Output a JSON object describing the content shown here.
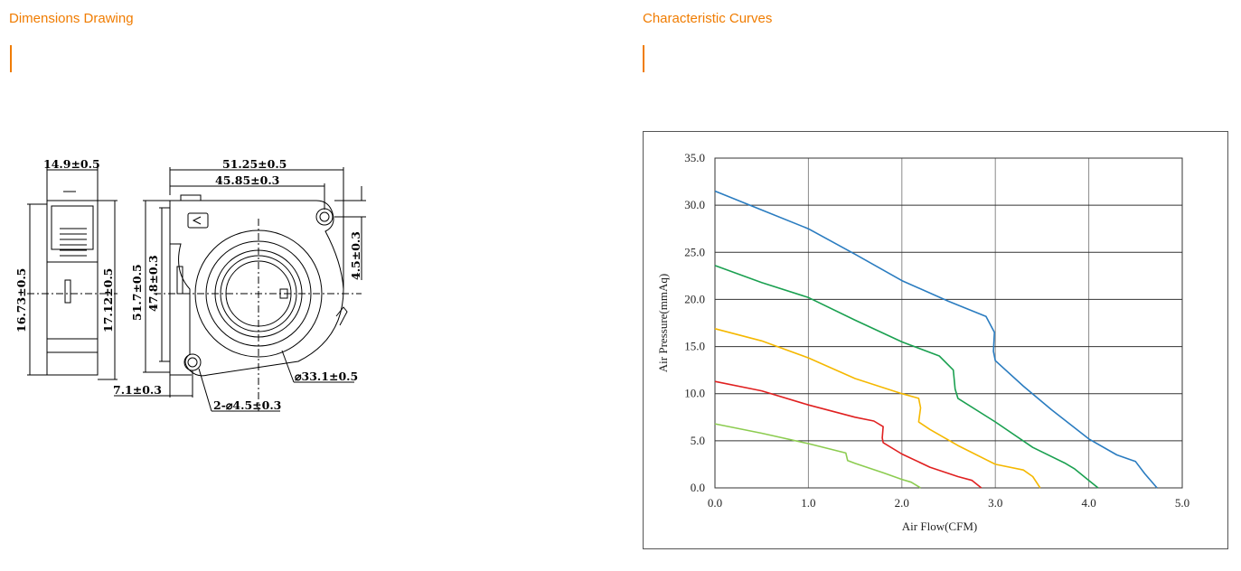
{
  "dimensions_section": {
    "title": "Dimensions Drawing",
    "labels": {
      "side_width": "14.9±0.5",
      "side_height_outer": "16.73±0.5",
      "side_height_inner": "17.12±0.5",
      "top_width": "51.25±0.5",
      "inner_width": "45.85±0.3",
      "outer_height": "51.7±0.5",
      "inner_height": "47.8±0.3",
      "right_offset": "4.5±0.3",
      "bottom_offset": "7.1±0.3",
      "hole_spec": "2-⌀4.5±0.3",
      "impeller_dia": "⌀33.1±0.5"
    }
  },
  "curves_section": {
    "title": "Characteristic Curves"
  },
  "chart_data": {
    "type": "line",
    "xlabel": "Air Flow(CFM)",
    "ylabel": "Air Pressure(mmAq)",
    "xlim": [
      0,
      5
    ],
    "ylim": [
      0,
      35
    ],
    "x_ticks": [
      "0.0",
      "1.0",
      "2.0",
      "3.0",
      "4.0",
      "5.0"
    ],
    "y_ticks": [
      "0.0",
      "5.0",
      "10.0",
      "15.0",
      "20.0",
      "25.0",
      "30.0",
      "35.0"
    ],
    "grid": true,
    "series": [
      {
        "color": "#2a7cc0",
        "points": [
          [
            0,
            31.5
          ],
          [
            0.5,
            29.5
          ],
          [
            1.0,
            27.5
          ],
          [
            1.5,
            24.8
          ],
          [
            2.0,
            22.0
          ],
          [
            2.5,
            19.8
          ],
          [
            2.9,
            18.2
          ],
          [
            2.99,
            16.5
          ],
          [
            2.98,
            14.5
          ],
          [
            3.0,
            13.5
          ],
          [
            3.3,
            10.8
          ],
          [
            3.6,
            8.3
          ],
          [
            4.0,
            5.2
          ],
          [
            4.3,
            3.5
          ],
          [
            4.5,
            2.8
          ],
          [
            4.6,
            1.5
          ],
          [
            4.73,
            0
          ]
        ]
      },
      {
        "color": "#1aa050",
        "points": [
          [
            0,
            23.6
          ],
          [
            0.5,
            21.8
          ],
          [
            1.0,
            20.2
          ],
          [
            1.5,
            17.8
          ],
          [
            2.0,
            15.5
          ],
          [
            2.4,
            14.0
          ],
          [
            2.55,
            12.5
          ],
          [
            2.57,
            10.5
          ],
          [
            2.6,
            9.5
          ],
          [
            3.0,
            7.0
          ],
          [
            3.4,
            4.3
          ],
          [
            3.75,
            2.6
          ],
          [
            3.85,
            2.0
          ],
          [
            4.0,
            0.8
          ],
          [
            4.1,
            0
          ]
        ]
      },
      {
        "color": "#f5b800",
        "points": [
          [
            0,
            16.9
          ],
          [
            0.5,
            15.6
          ],
          [
            1.0,
            13.8
          ],
          [
            1.5,
            11.6
          ],
          [
            2.0,
            10.0
          ],
          [
            2.18,
            9.5
          ],
          [
            2.2,
            8.5
          ],
          [
            2.18,
            7.0
          ],
          [
            2.3,
            6.2
          ],
          [
            2.6,
            4.5
          ],
          [
            3.0,
            2.5
          ],
          [
            3.3,
            1.9
          ],
          [
            3.4,
            1.2
          ],
          [
            3.48,
            0
          ]
        ]
      },
      {
        "color": "#e02020",
        "points": [
          [
            0,
            11.3
          ],
          [
            0.5,
            10.3
          ],
          [
            1.0,
            8.8
          ],
          [
            1.5,
            7.5
          ],
          [
            1.7,
            7.1
          ],
          [
            1.8,
            6.5
          ],
          [
            1.79,
            5.3
          ],
          [
            1.8,
            4.8
          ],
          [
            2.0,
            3.6
          ],
          [
            2.3,
            2.2
          ],
          [
            2.6,
            1.2
          ],
          [
            2.75,
            0.8
          ],
          [
            2.85,
            0
          ]
        ]
      },
      {
        "color": "#8ccc50",
        "points": [
          [
            0,
            6.8
          ],
          [
            0.5,
            5.8
          ],
          [
            1.0,
            4.7
          ],
          [
            1.4,
            3.7
          ],
          [
            1.42,
            2.9
          ],
          [
            1.5,
            2.6
          ],
          [
            1.8,
            1.6
          ],
          [
            2.0,
            0.9
          ],
          [
            2.1,
            0.6
          ],
          [
            2.2,
            0
          ]
        ]
      }
    ]
  }
}
